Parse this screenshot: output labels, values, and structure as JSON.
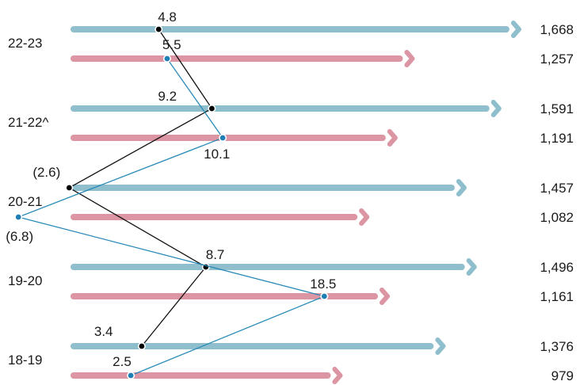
{
  "chart_data": {
    "type": "bar",
    "orientation": "horizontal",
    "categories": [
      "22-23",
      "21-22^",
      "20-21",
      "19-20",
      "18-19"
    ],
    "series": [
      {
        "color": "#8fbfcc",
        "values": [
          1668,
          1591,
          1457,
          1496,
          1376
        ]
      },
      {
        "color": "#dc95a3",
        "values": [
          1257,
          1191,
          1082,
          1161,
          979
        ]
      }
    ],
    "value_labels": [
      [
        "1,668",
        "1,591",
        "1,457",
        "1,496",
        "1,376"
      ],
      [
        "1,257",
        "1,191",
        "1,082",
        "1,161",
        "979"
      ]
    ],
    "growth_lines": [
      {
        "color": "#111111",
        "marker_color": "#000000",
        "values": [
          4.8,
          9.2,
          -2.6,
          8.7,
          3.4
        ],
        "labels": [
          "4.8",
          "9.2",
          "(2.6)",
          "8.7",
          "3.4"
        ]
      },
      {
        "color": "#2a8ab8",
        "marker_color": "#1f7fb5",
        "values": [
          5.5,
          10.1,
          -6.8,
          18.5,
          2.5
        ],
        "labels": [
          "5.5",
          "10.1",
          "(6.8)",
          "18.5",
          "2.5"
        ]
      }
    ],
    "legend": "none",
    "grid": false
  }
}
